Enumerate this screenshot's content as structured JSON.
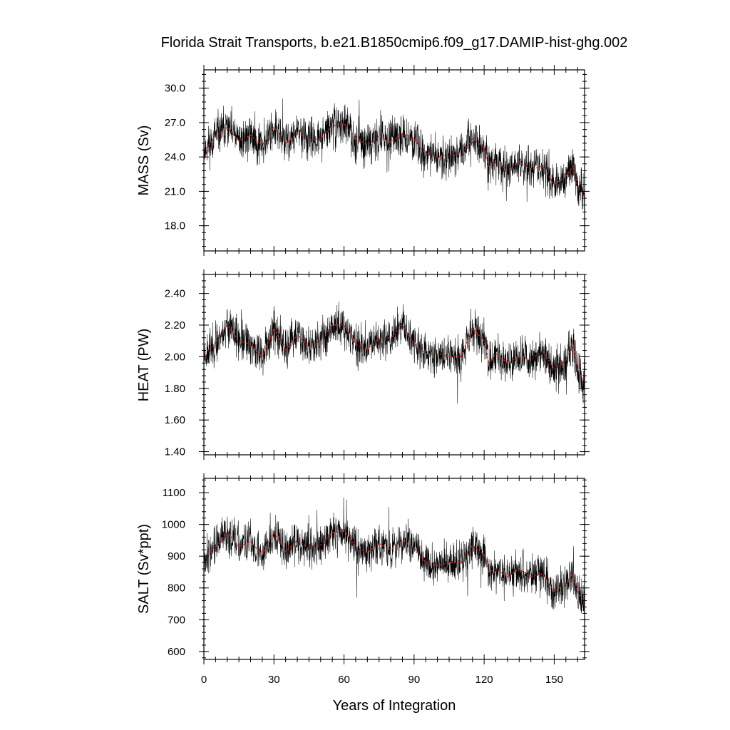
{
  "title": "Florida Strait Transports, b.e21.B1850cmip6.f09_g17.DAMIP-hist-ghg.002",
  "xlabel": "Years of Integration",
  "colors": {
    "raw": "#000000",
    "smooth": "#d62020",
    "axis": "#000000"
  },
  "chart_data": [
    {
      "type": "line",
      "name": "mass",
      "ylabel": "MASS (Sv)",
      "x_ticks": [
        "0",
        "30",
        "60",
        "90",
        "120",
        "150"
      ],
      "y_ticks": [
        "18.0",
        "21.0",
        "24.0",
        "27.0",
        "30.0"
      ],
      "xlim": [
        0,
        163
      ],
      "ylim": [
        15.8,
        31.6
      ],
      "smooth": [
        {
          "x": 0,
          "y": 24.5
        },
        {
          "x": 5,
          "y": 25.8
        },
        {
          "x": 10,
          "y": 26.6
        },
        {
          "x": 15,
          "y": 25.4
        },
        {
          "x": 20,
          "y": 25.9
        },
        {
          "x": 25,
          "y": 25.0
        },
        {
          "x": 30,
          "y": 26.6
        },
        {
          "x": 35,
          "y": 25.2
        },
        {
          "x": 40,
          "y": 26.1
        },
        {
          "x": 45,
          "y": 25.5
        },
        {
          "x": 50,
          "y": 25.6
        },
        {
          "x": 55,
          "y": 26.7
        },
        {
          "x": 60,
          "y": 26.9
        },
        {
          "x": 65,
          "y": 25.6
        },
        {
          "x": 70,
          "y": 25.1
        },
        {
          "x": 75,
          "y": 25.8
        },
        {
          "x": 80,
          "y": 25.3
        },
        {
          "x": 85,
          "y": 26.0
        },
        {
          "x": 90,
          "y": 25.5
        },
        {
          "x": 95,
          "y": 24.3
        },
        {
          "x": 100,
          "y": 24.0
        },
        {
          "x": 105,
          "y": 24.2
        },
        {
          "x": 110,
          "y": 24.1
        },
        {
          "x": 115,
          "y": 25.6
        },
        {
          "x": 120,
          "y": 24.8
        },
        {
          "x": 122,
          "y": 23.2
        },
        {
          "x": 125,
          "y": 23.5
        },
        {
          "x": 130,
          "y": 22.9
        },
        {
          "x": 135,
          "y": 23.6
        },
        {
          "x": 140,
          "y": 22.9
        },
        {
          "x": 145,
          "y": 23.2
        },
        {
          "x": 150,
          "y": 21.6
        },
        {
          "x": 155,
          "y": 22.3
        },
        {
          "x": 158,
          "y": 23.2
        },
        {
          "x": 160,
          "y": 21.4
        },
        {
          "x": 163,
          "y": 20.6
        }
      ],
      "amp": 1.8,
      "seed": 11
    },
    {
      "type": "line",
      "name": "heat",
      "ylabel": "HEAT (PW)",
      "x_ticks": [
        "0",
        "30",
        "60",
        "90",
        "120",
        "150"
      ],
      "y_ticks": [
        "1.40",
        "1.60",
        "1.80",
        "2.00",
        "2.20",
        "2.40"
      ],
      "xlim": [
        0,
        163
      ],
      "ylim": [
        1.38,
        2.52
      ],
      "smooth": [
        {
          "x": 0,
          "y": 2.02
        },
        {
          "x": 5,
          "y": 2.08
        },
        {
          "x": 10,
          "y": 2.2
        },
        {
          "x": 15,
          "y": 2.1
        },
        {
          "x": 20,
          "y": 2.08
        },
        {
          "x": 25,
          "y": 2.0
        },
        {
          "x": 30,
          "y": 2.18
        },
        {
          "x": 35,
          "y": 2.04
        },
        {
          "x": 40,
          "y": 2.14
        },
        {
          "x": 45,
          "y": 2.06
        },
        {
          "x": 50,
          "y": 2.1
        },
        {
          "x": 55,
          "y": 2.2
        },
        {
          "x": 60,
          "y": 2.2
        },
        {
          "x": 65,
          "y": 2.08
        },
        {
          "x": 70,
          "y": 2.04
        },
        {
          "x": 75,
          "y": 2.12
        },
        {
          "x": 80,
          "y": 2.12
        },
        {
          "x": 85,
          "y": 2.2
        },
        {
          "x": 90,
          "y": 2.08
        },
        {
          "x": 95,
          "y": 2.02
        },
        {
          "x": 100,
          "y": 2.02
        },
        {
          "x": 105,
          "y": 2.0
        },
        {
          "x": 110,
          "y": 2.0
        },
        {
          "x": 115,
          "y": 2.18
        },
        {
          "x": 120,
          "y": 2.1
        },
        {
          "x": 122,
          "y": 1.96
        },
        {
          "x": 125,
          "y": 2.02
        },
        {
          "x": 130,
          "y": 1.96
        },
        {
          "x": 135,
          "y": 2.0
        },
        {
          "x": 140,
          "y": 1.98
        },
        {
          "x": 145,
          "y": 2.04
        },
        {
          "x": 150,
          "y": 1.92
        },
        {
          "x": 155,
          "y": 1.98
        },
        {
          "x": 158,
          "y": 2.08
        },
        {
          "x": 160,
          "y": 1.92
        },
        {
          "x": 163,
          "y": 1.84
        }
      ],
      "amp": 0.13,
      "seed": 23
    },
    {
      "type": "line",
      "name": "salt",
      "ylabel": "SALT (Sv*ppt)",
      "x_ticks": [
        "0",
        "30",
        "60",
        "90",
        "120",
        "150"
      ],
      "y_ticks": [
        "600",
        "700",
        "800",
        "900",
        "1000",
        "1100"
      ],
      "xlim": [
        0,
        163
      ],
      "ylim": [
        575,
        1145
      ],
      "smooth": [
        {
          "x": 0,
          "y": 900
        },
        {
          "x": 5,
          "y": 930
        },
        {
          "x": 10,
          "y": 975
        },
        {
          "x": 15,
          "y": 930
        },
        {
          "x": 20,
          "y": 945
        },
        {
          "x": 25,
          "y": 905
        },
        {
          "x": 30,
          "y": 975
        },
        {
          "x": 35,
          "y": 915
        },
        {
          "x": 40,
          "y": 950
        },
        {
          "x": 45,
          "y": 925
        },
        {
          "x": 50,
          "y": 935
        },
        {
          "x": 55,
          "y": 975
        },
        {
          "x": 60,
          "y": 980
        },
        {
          "x": 65,
          "y": 930
        },
        {
          "x": 70,
          "y": 910
        },
        {
          "x": 75,
          "y": 940
        },
        {
          "x": 80,
          "y": 920
        },
        {
          "x": 85,
          "y": 950
        },
        {
          "x": 90,
          "y": 925
        },
        {
          "x": 95,
          "y": 880
        },
        {
          "x": 100,
          "y": 870
        },
        {
          "x": 105,
          "y": 880
        },
        {
          "x": 110,
          "y": 880
        },
        {
          "x": 115,
          "y": 935
        },
        {
          "x": 120,
          "y": 905
        },
        {
          "x": 122,
          "y": 850
        },
        {
          "x": 125,
          "y": 860
        },
        {
          "x": 130,
          "y": 835
        },
        {
          "x": 135,
          "y": 860
        },
        {
          "x": 140,
          "y": 835
        },
        {
          "x": 145,
          "y": 845
        },
        {
          "x": 150,
          "y": 790
        },
        {
          "x": 155,
          "y": 815
        },
        {
          "x": 158,
          "y": 845
        },
        {
          "x": 160,
          "y": 785
        },
        {
          "x": 163,
          "y": 755
        }
      ],
      "amp": 65,
      "seed": 37
    }
  ]
}
